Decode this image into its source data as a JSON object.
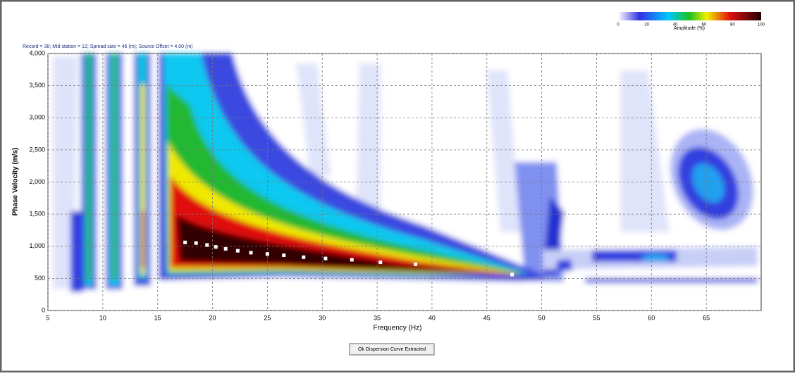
{
  "chart_data": {
    "type": "scatter",
    "title": "Record = 38; Mid station = 12; Spread size = 46 (m); Source Offset = 4.00 (m)",
    "x_label": "Frequency (Hz)",
    "y_label": "Phase Velocity (m/s)",
    "x": [
      17.5,
      18.5,
      19.5,
      20.3,
      21.2,
      22.3,
      23.5,
      25,
      26.5,
      28.3,
      30.3,
      32.7,
      35.3,
      38.5,
      47.3
    ],
    "values": [
      1060,
      1050,
      1020,
      990,
      960,
      930,
      900,
      880,
      860,
      830,
      810,
      790,
      750,
      720,
      560
    ],
    "color": "#ffffff",
    "xlim": [
      5,
      70
    ],
    "xticks": [
      5,
      10,
      15,
      20,
      25,
      30,
      35,
      40,
      45,
      50,
      55,
      60,
      65
    ],
    "ylim": [
      0,
      4000
    ],
    "yticks": [
      0,
      500,
      {
        "value": 1000,
        "label": "1,000"
      },
      {
        "value": 1500,
        "label": "1,500"
      },
      {
        "value": 2000,
        "label": "2,000"
      },
      {
        "value": 2500,
        "label": "2,500"
      },
      {
        "value": 3000,
        "label": "3,000"
      },
      {
        "value": 3500,
        "label": "3,500"
      },
      {
        "value": 4000,
        "label": "4,000"
      }
    ],
    "grid": true,
    "colorbar": {
      "label": "Amplitude (%)",
      "ticks": [
        0,
        20,
        40,
        60,
        80,
        100
      ]
    }
  },
  "button": "Ok Dispersion Curve Extracted"
}
